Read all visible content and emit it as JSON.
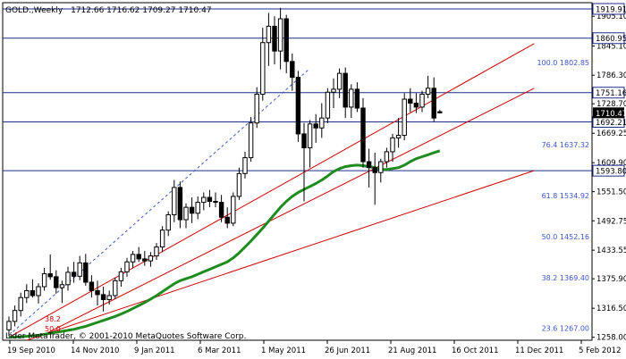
{
  "header": {
    "symbol": "GOLD.,Weekly",
    "ohlc": "1712.66 1716.62 1709.27 1710.47"
  },
  "watermark": "Lider MetaTrader, © 2001-2010 MetaQuotes Software Corp.",
  "colors": {
    "bull": "#000000",
    "bear": "#000000",
    "support_resistance": "#1e2d8c",
    "trendline": "#cc0000",
    "fib_dashed": "#3a55c8",
    "fib_label": "#3a55c8",
    "ma": "#1e8c1e",
    "price_tag_bg": "#000000",
    "ticks": "#000000"
  },
  "chart_data": {
    "type": "candlestick",
    "timeframe": "Weekly",
    "ylim": [
      1252.0,
      1932.5
    ],
    "y_ticks": [
      "1905.10",
      "1845.10",
      "1786.30",
      "1728.70",
      "1669.25",
      "1609.90",
      "1551.50",
      "1492.75",
      "1433.55",
      "1375.90",
      "1316.50",
      "1258.00"
    ],
    "x_ticks": [
      "19 Sep 2010",
      "14 Nov 2010",
      "9 Jan 2011",
      "6 Mar 2011",
      "1 May 2011",
      "26 Jun 2011",
      "21 Aug 2011",
      "16 Oct 2011",
      "11 Dec 2011",
      "5 Feb 2012"
    ],
    "horizontal_levels": [
      {
        "label": "1919.91",
        "value": 1919.91
      },
      {
        "label": "1860.95",
        "value": 1860.95
      },
      {
        "label": "1751.16",
        "value": 1751.16
      },
      {
        "label": "1692.21",
        "value": 1692.21
      },
      {
        "label": "1593.80",
        "value": 1593.8
      }
    ],
    "fibonacci_levels": [
      {
        "label": "100.0 1802.85",
        "value": 1802.85
      },
      {
        "label": "76.4 1637.32",
        "value": 1637.32
      },
      {
        "label": "61.8 1534.92",
        "value": 1534.92
      },
      {
        "label": "50.0 1452.16",
        "value": 1452.16
      },
      {
        "label": "38.2 1369.40",
        "value": 1369.4
      },
      {
        "label": "23.6 1267.00",
        "value": 1267.0
      }
    ],
    "fib_extra_labels": [
      "38.2",
      "50.0"
    ],
    "current_price": {
      "label": "1710.47",
      "value": 1710.47
    },
    "candles": [
      {
        "o": 1273,
        "h": 1300,
        "l": 1260,
        "c": 1290
      },
      {
        "o": 1290,
        "h": 1322,
        "l": 1280,
        "c": 1312
      },
      {
        "o": 1312,
        "h": 1348,
        "l": 1300,
        "c": 1338
      },
      {
        "o": 1338,
        "h": 1365,
        "l": 1327,
        "c": 1352
      },
      {
        "o": 1352,
        "h": 1375,
        "l": 1338,
        "c": 1342
      },
      {
        "o": 1342,
        "h": 1367,
        "l": 1326,
        "c": 1360
      },
      {
        "o": 1360,
        "h": 1398,
        "l": 1352,
        "c": 1386
      },
      {
        "o": 1386,
        "h": 1425,
        "l": 1374,
        "c": 1380
      },
      {
        "o": 1380,
        "h": 1393,
        "l": 1346,
        "c": 1358
      },
      {
        "o": 1358,
        "h": 1372,
        "l": 1327,
        "c": 1364
      },
      {
        "o": 1364,
        "h": 1400,
        "l": 1352,
        "c": 1389
      },
      {
        "o": 1389,
        "h": 1410,
        "l": 1368,
        "c": 1381
      },
      {
        "o": 1381,
        "h": 1422,
        "l": 1373,
        "c": 1408
      },
      {
        "o": 1408,
        "h": 1426,
        "l": 1362,
        "c": 1369
      },
      {
        "o": 1369,
        "h": 1383,
        "l": 1338,
        "c": 1352
      },
      {
        "o": 1352,
        "h": 1372,
        "l": 1322,
        "c": 1344
      },
      {
        "o": 1344,
        "h": 1360,
        "l": 1310,
        "c": 1334
      },
      {
        "o": 1334,
        "h": 1352,
        "l": 1324,
        "c": 1342
      },
      {
        "o": 1342,
        "h": 1378,
        "l": 1335,
        "c": 1372
      },
      {
        "o": 1372,
        "h": 1398,
        "l": 1360,
        "c": 1390
      },
      {
        "o": 1390,
        "h": 1418,
        "l": 1380,
        "c": 1410
      },
      {
        "o": 1410,
        "h": 1432,
        "l": 1398,
        "c": 1425
      },
      {
        "o": 1425,
        "h": 1440,
        "l": 1410,
        "c": 1416
      },
      {
        "o": 1416,
        "h": 1432,
        "l": 1402,
        "c": 1412
      },
      {
        "o": 1412,
        "h": 1430,
        "l": 1400,
        "c": 1422
      },
      {
        "o": 1422,
        "h": 1448,
        "l": 1414,
        "c": 1440
      },
      {
        "o": 1440,
        "h": 1482,
        "l": 1430,
        "c": 1474
      },
      {
        "o": 1474,
        "h": 1512,
        "l": 1462,
        "c": 1505
      },
      {
        "o": 1505,
        "h": 1575,
        "l": 1490,
        "c": 1560
      },
      {
        "o": 1560,
        "h": 1572,
        "l": 1478,
        "c": 1495
      },
      {
        "o": 1495,
        "h": 1528,
        "l": 1478,
        "c": 1520
      },
      {
        "o": 1520,
        "h": 1540,
        "l": 1488,
        "c": 1508
      },
      {
        "o": 1508,
        "h": 1542,
        "l": 1496,
        "c": 1530
      },
      {
        "o": 1530,
        "h": 1550,
        "l": 1514,
        "c": 1540
      },
      {
        "o": 1540,
        "h": 1555,
        "l": 1520,
        "c": 1532
      },
      {
        "o": 1532,
        "h": 1550,
        "l": 1520,
        "c": 1530
      },
      {
        "o": 1530,
        "h": 1545,
        "l": 1490,
        "c": 1500
      },
      {
        "o": 1500,
        "h": 1520,
        "l": 1478,
        "c": 1488
      },
      {
        "o": 1488,
        "h": 1550,
        "l": 1482,
        "c": 1542
      },
      {
        "o": 1542,
        "h": 1600,
        "l": 1535,
        "c": 1588
      },
      {
        "o": 1588,
        "h": 1632,
        "l": 1578,
        "c": 1620
      },
      {
        "o": 1620,
        "h": 1702,
        "l": 1612,
        "c": 1690
      },
      {
        "o": 1690,
        "h": 1762,
        "l": 1680,
        "c": 1748
      },
      {
        "o": 1748,
        "h": 1882,
        "l": 1735,
        "c": 1852
      },
      {
        "o": 1852,
        "h": 1912,
        "l": 1805,
        "c": 1885
      },
      {
        "o": 1885,
        "h": 1905,
        "l": 1808,
        "c": 1835
      },
      {
        "o": 1835,
        "h": 1922,
        "l": 1798,
        "c": 1900
      },
      {
        "o": 1900,
        "h": 1908,
        "l": 1790,
        "c": 1814
      },
      {
        "o": 1814,
        "h": 1830,
        "l": 1755,
        "c": 1782
      },
      {
        "o": 1782,
        "h": 1795,
        "l": 1652,
        "c": 1668
      },
      {
        "o": 1668,
        "h": 1690,
        "l": 1532,
        "c": 1640
      },
      {
        "o": 1640,
        "h": 1696,
        "l": 1600,
        "c": 1688
      },
      {
        "o": 1688,
        "h": 1708,
        "l": 1650,
        "c": 1680
      },
      {
        "o": 1680,
        "h": 1730,
        "l": 1660,
        "c": 1700
      },
      {
        "o": 1700,
        "h": 1760,
        "l": 1690,
        "c": 1752
      },
      {
        "o": 1752,
        "h": 1780,
        "l": 1720,
        "c": 1758
      },
      {
        "o": 1758,
        "h": 1800,
        "l": 1740,
        "c": 1790
      },
      {
        "o": 1790,
        "h": 1802,
        "l": 1700,
        "c": 1722
      },
      {
        "o": 1722,
        "h": 1768,
        "l": 1700,
        "c": 1758
      },
      {
        "o": 1758,
        "h": 1772,
        "l": 1712,
        "c": 1720
      },
      {
        "o": 1720,
        "h": 1740,
        "l": 1600,
        "c": 1612
      },
      {
        "o": 1612,
        "h": 1638,
        "l": 1560,
        "c": 1600
      },
      {
        "o": 1600,
        "h": 1630,
        "l": 1525,
        "c": 1590
      },
      {
        "o": 1590,
        "h": 1618,
        "l": 1570,
        "c": 1612
      },
      {
        "o": 1612,
        "h": 1640,
        "l": 1600,
        "c": 1632
      },
      {
        "o": 1632,
        "h": 1668,
        "l": 1612,
        "c": 1660
      },
      {
        "o": 1660,
        "h": 1700,
        "l": 1640,
        "c": 1665
      },
      {
        "o": 1665,
        "h": 1750,
        "l": 1655,
        "c": 1738
      },
      {
        "o": 1738,
        "h": 1760,
        "l": 1712,
        "c": 1730
      },
      {
        "o": 1730,
        "h": 1750,
        "l": 1710,
        "c": 1722
      },
      {
        "o": 1722,
        "h": 1755,
        "l": 1712,
        "c": 1748
      },
      {
        "o": 1748,
        "h": 1785,
        "l": 1740,
        "c": 1760
      },
      {
        "o": 1760,
        "h": 1782,
        "l": 1692,
        "c": 1700
      },
      {
        "o": 1712.66,
        "h": 1716.62,
        "l": 1709.27,
        "c": 1710.47
      }
    ],
    "moving_average": {
      "name": "",
      "start_index": 0,
      "values": [
        1258,
        1258.5,
        1259,
        1260,
        1261,
        1262,
        1264,
        1266,
        1268,
        1270,
        1272,
        1274,
        1277,
        1280,
        1284,
        1288,
        1292,
        1296,
        1300,
        1305,
        1310,
        1316,
        1322,
        1328,
        1335,
        1342,
        1350,
        1358,
        1366,
        1372,
        1376,
        1380,
        1385,
        1390,
        1395,
        1400,
        1405,
        1410,
        1418,
        1428,
        1440,
        1452,
        1465,
        1478,
        1492,
        1506,
        1520,
        1532,
        1542,
        1550,
        1556,
        1562,
        1568,
        1575,
        1583,
        1592,
        1598,
        1602,
        1604,
        1605,
        1604,
        1602,
        1600,
        1596,
        1596,
        1598,
        1600,
        1605,
        1612,
        1618,
        1622,
        1626,
        1630,
        1634
      ]
    },
    "trendlines": [
      {
        "kind": "solid",
        "from": [
          0,
          1258
        ],
        "to": [
          89,
          1850
        ]
      },
      {
        "kind": "solid",
        "from": [
          5,
          1258
        ],
        "to": [
          89,
          1760
        ]
      },
      {
        "kind": "solid",
        "from": [
          3,
          1252
        ],
        "to": [
          89,
          1594
        ]
      },
      {
        "kind": "dashed",
        "from": [
          0,
          1262
        ],
        "to": [
          51,
          1800
        ]
      }
    ]
  }
}
